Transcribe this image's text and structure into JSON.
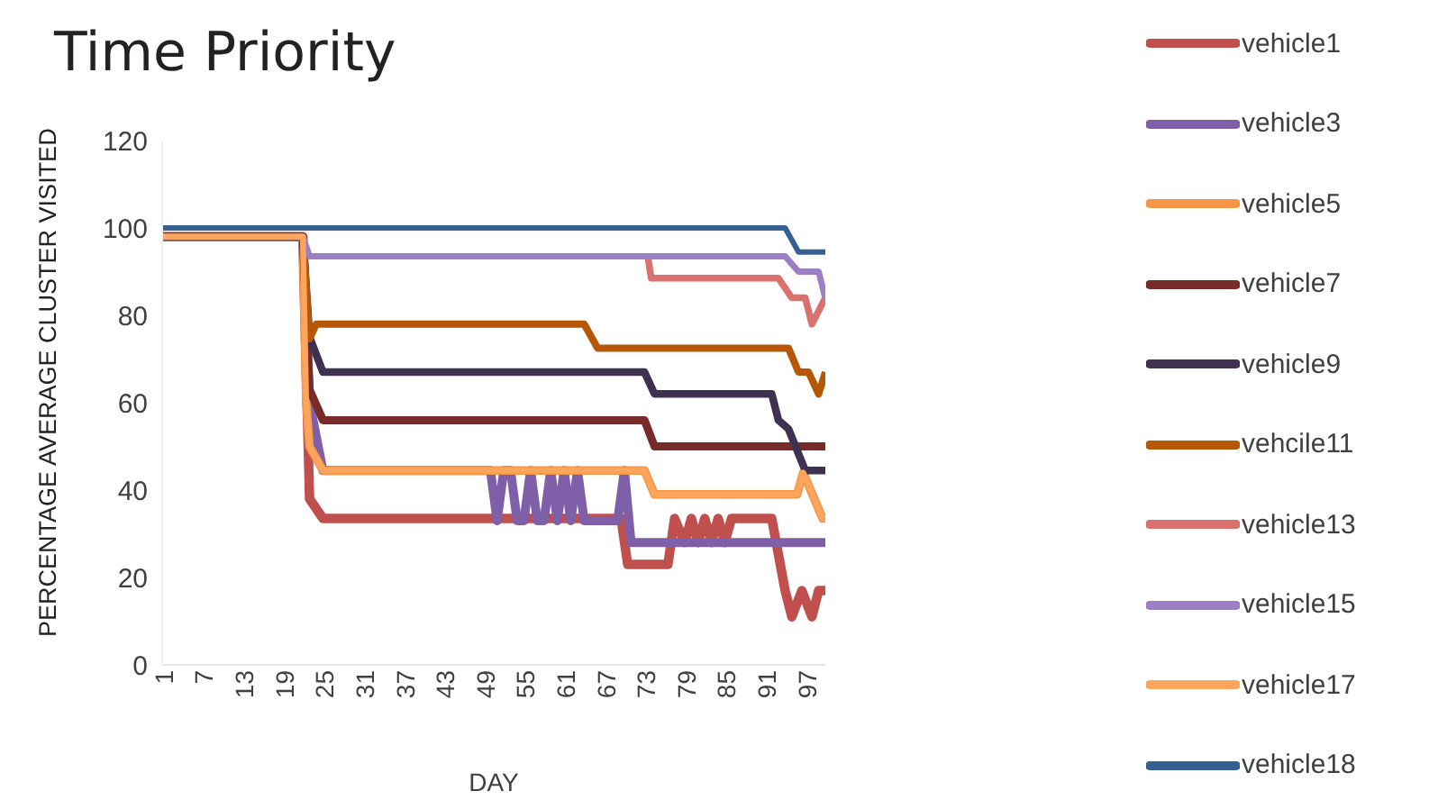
{
  "chart_data": {
    "type": "line",
    "title": "Time Priority",
    "xlabel": "DAY",
    "ylabel": "PERCENTAGE AVERAGE  CLUSTER VISITED",
    "xlim": [
      1,
      100
    ],
    "xticks": [
      1,
      7,
      13,
      19,
      25,
      31,
      37,
      43,
      49,
      55,
      61,
      67,
      73,
      79,
      85,
      91,
      97
    ],
    "ylim": [
      0,
      120
    ],
    "yticks": [
      0,
      20,
      40,
      60,
      80,
      100,
      120
    ],
    "grid": false,
    "legend": "right",
    "series": [
      {
        "name": "vehicle1",
        "color": "#c0504d",
        "x": [
          1,
          22,
          23,
          25,
          69.5,
          70.5,
          76.5,
          77.5,
          79,
          80,
          81,
          82,
          83,
          84,
          85,
          86,
          92,
          94,
          95,
          96.5,
          98,
          99,
          100
        ],
        "values": [
          98,
          98,
          38,
          33.5,
          33.5,
          23,
          23,
          33.5,
          28,
          33.5,
          28,
          33.5,
          28,
          33.5,
          28,
          33.5,
          33.5,
          17,
          11,
          17,
          11,
          17,
          17
        ]
      },
      {
        "name": "vehicle3",
        "color": "#7f5fa8",
        "x": [
          1,
          22,
          23,
          25,
          50,
          51,
          52,
          53,
          54,
          55,
          56,
          57,
          58,
          59,
          60,
          61,
          62,
          63,
          64,
          69,
          70,
          71,
          100
        ],
        "values": [
          98,
          98,
          60,
          44.5,
          44.5,
          33,
          44.5,
          44.5,
          33,
          33,
          44.5,
          33,
          33,
          44.5,
          33,
          44.5,
          33,
          44.5,
          33,
          33,
          44.5,
          28,
          28
        ]
      },
      {
        "name": "vehicle5",
        "color": "#f79646",
        "x": [
          1,
          22,
          22.5,
          23,
          25,
          73,
          74.5,
          95.8,
          96.7,
          99.6,
          100
        ],
        "values": [
          98,
          98,
          60,
          50,
          44.5,
          44.5,
          39,
          39,
          44,
          33.5,
          33.5
        ]
      },
      {
        "name": "vehicle7",
        "color": "#772c2a",
        "x": [
          1,
          22,
          23,
          25,
          73,
          74.5,
          100
        ],
        "values": [
          98,
          98,
          63,
          56,
          56,
          50,
          50
        ]
      },
      {
        "name": "vehicle9",
        "color": "#3f3151",
        "x": [
          1,
          22,
          23,
          25,
          73,
          74.5,
          92,
          93,
          94.5,
          97,
          100
        ],
        "values": [
          98,
          98,
          75,
          67,
          67,
          62,
          62,
          56,
          54,
          44.5,
          44.5
        ]
      },
      {
        "name": "vehcile11",
        "color": "#b65708",
        "x": [
          1,
          22,
          23,
          24,
          64,
          66,
          94.5,
          96,
          97.5,
          99,
          100
        ],
        "values": [
          98,
          98,
          74.6,
          78,
          78,
          72.5,
          72.5,
          67,
          67,
          62,
          67
        ]
      },
      {
        "name": "vehicle13",
        "color": "#d9716e",
        "x": [
          73.5,
          74,
          93,
          95,
          97,
          98,
          100
        ],
        "values": [
          93.5,
          88.5,
          88.5,
          84,
          84,
          78,
          84
        ]
      },
      {
        "name": "vehicle15",
        "color": "#9c7fc4",
        "x": [
          1,
          22,
          23,
          94,
          96,
          99,
          100
        ],
        "values": [
          98,
          98,
          93.5,
          93.5,
          90,
          90,
          84
        ]
      },
      {
        "name": "vehicle17",
        "color": "#fba55e",
        "x": [
          1,
          22,
          22.5,
          23,
          25,
          73,
          74.5,
          95.8,
          96.7,
          99.6,
          100
        ],
        "values": [
          98,
          98,
          60,
          50,
          44.5,
          44.5,
          39,
          39,
          44,
          33.5,
          33.5
        ]
      },
      {
        "name": "vehicle18",
        "color": "#366092",
        "x": [
          1,
          94,
          96,
          100
        ],
        "values": [
          100,
          100,
          94.5,
          94.5
        ]
      }
    ]
  }
}
